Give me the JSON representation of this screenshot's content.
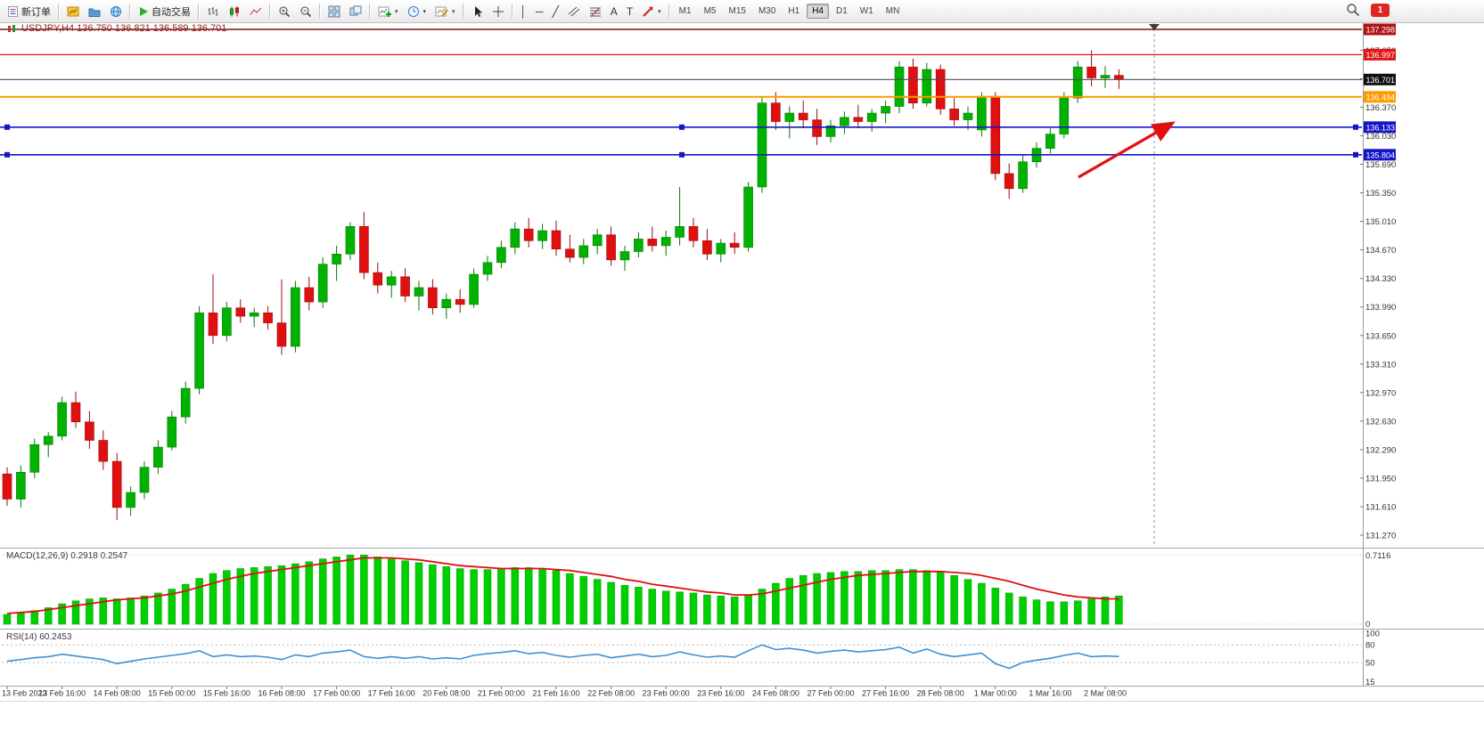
{
  "toolbar": {
    "new_order": "新订单",
    "auto_trading": "自动交易",
    "timeframes": [
      "M1",
      "M5",
      "M15",
      "M30",
      "H1",
      "H4",
      "D1",
      "W1",
      "MN"
    ],
    "active_timeframe": "H4",
    "badge": "1"
  },
  "icons": {
    "vline": "│",
    "hline": "─",
    "trendline": "╱",
    "text": "A",
    "text_label": "T",
    "caret": "▾"
  },
  "colors": {
    "bull": "#00b300",
    "bull_edge": "#067806",
    "bear": "#e01010",
    "bear_edge": "#9c0b0b",
    "macd_histogram": "#00cf00",
    "macd_histogram_edge": "#0a9c0a",
    "macd_signal": "#e01010",
    "rsi_line": "#3f8fd2"
  },
  "chart": {
    "symbol_title": "USDJPY,H4 136.750 136.821 136.589 136.701",
    "macd_label": "MACD(12,26,9) 0.2918 0.2547",
    "rsi_label": "RSI(14) 60.2453",
    "price_axis": [
      "137.050",
      "136.710",
      "136.370",
      "136.030",
      "135.690",
      "135.350",
      "135.010",
      "134.670",
      "134.330",
      "133.990",
      "133.650",
      "133.310",
      "132.970",
      "132.630",
      "132.290",
      "131.950",
      "131.610",
      "131.270"
    ],
    "macd_axis": [
      "0.7116",
      "0"
    ],
    "rsi_axis": [
      "100",
      "80",
      "50",
      "15"
    ],
    "hlines": [
      {
        "name": "resistance-line-1",
        "price": 137.298,
        "label": "137.298",
        "color": "#7b1113",
        "tag_bg": "#b01216",
        "width": 1.6
      },
      {
        "name": "resistance-line-2",
        "price": 136.997,
        "label": "136.997",
        "color": "#e21717",
        "tag_bg": "#e21717",
        "width": 1.3
      },
      {
        "name": "current-price-line",
        "price": 136.701,
        "label": "136.701",
        "color": "#4d4d4d",
        "tag_bg": "#101010",
        "width": 1.2
      },
      {
        "name": "pivot-line",
        "price": 136.494,
        "label": "136.494",
        "color": "#ff9a00",
        "tag_bg": "#ff9a00",
        "width": 2
      },
      {
        "name": "support-line-1",
        "price": 136.133,
        "label": "136.133",
        "color": "#1414c8",
        "tag_bg": "#1414c8",
        "width": 1.6,
        "handles": true
      },
      {
        "name": "support-line-2",
        "price": 135.804,
        "label": "135.804",
        "color": "#1414c8",
        "tag_bg": "#1414c8",
        "width": 1.6,
        "handles": true
      }
    ],
    "annotation_arrow": {
      "from": [
        1210,
        199
      ],
      "to": [
        1316,
        138
      ],
      "color": "#e01010"
    }
  },
  "chart_data": {
    "type": "candlestick",
    "symbol": "USDJPY",
    "timeframe": "H4",
    "ohlc_current": {
      "open": "136.750",
      "high": "136.821",
      "low": "136.589",
      "close": "136.701"
    },
    "price_range": [
      131.27,
      137.35
    ],
    "time_labels": [
      "13 Feb 2023",
      "13 Feb 16:00",
      "14 Feb 08:00",
      "15 Feb 00:00",
      "15 Feb 16:00",
      "16 Feb 08:00",
      "17 Feb 00:00",
      "17 Feb 16:00",
      "20 Feb 08:00",
      "21 Feb 00:00",
      "21 Feb 16:00",
      "22 Feb 08:00",
      "23 Feb 00:00",
      "23 Feb 16:00",
      "24 Feb 08:00",
      "27 Feb 00:00",
      "27 Feb 16:00",
      "28 Feb 08:00",
      "1 Mar 00:00",
      "1 Mar 16:00",
      "2 Mar 08:00"
    ],
    "candles": [
      [
        132.0,
        132.08,
        131.62,
        131.7
      ],
      [
        131.7,
        132.1,
        131.6,
        132.02
      ],
      [
        132.02,
        132.42,
        131.95,
        132.35
      ],
      [
        132.35,
        132.5,
        132.2,
        132.45
      ],
      [
        132.45,
        132.92,
        132.4,
        132.85
      ],
      [
        132.85,
        132.98,
        132.55,
        132.62
      ],
      [
        132.62,
        132.75,
        132.3,
        132.4
      ],
      [
        132.4,
        132.52,
        132.05,
        132.15
      ],
      [
        132.15,
        132.25,
        131.45,
        131.6
      ],
      [
        131.6,
        131.85,
        131.5,
        131.78
      ],
      [
        131.78,
        132.15,
        131.7,
        132.08
      ],
      [
        132.08,
        132.4,
        132.0,
        132.32
      ],
      [
        132.32,
        132.75,
        132.28,
        132.68
      ],
      [
        132.68,
        133.1,
        132.6,
        133.02
      ],
      [
        133.02,
        134.0,
        132.95,
        133.92
      ],
      [
        133.92,
        134.38,
        133.55,
        133.65
      ],
      [
        133.65,
        134.05,
        133.58,
        133.98
      ],
      [
        133.98,
        134.08,
        133.8,
        133.88
      ],
      [
        133.88,
        133.98,
        133.75,
        133.92
      ],
      [
        133.92,
        134.0,
        133.72,
        133.8
      ],
      [
        133.8,
        134.32,
        133.42,
        133.52
      ],
      [
        133.52,
        134.3,
        133.45,
        134.22
      ],
      [
        134.22,
        134.35,
        133.95,
        134.05
      ],
      [
        134.05,
        134.58,
        133.98,
        134.5
      ],
      [
        134.5,
        134.72,
        134.3,
        134.62
      ],
      [
        134.62,
        135.0,
        134.55,
        134.95
      ],
      [
        134.95,
        135.12,
        134.32,
        134.4
      ],
      [
        134.4,
        134.52,
        134.15,
        134.25
      ],
      [
        134.25,
        134.42,
        134.1,
        134.35
      ],
      [
        134.35,
        134.45,
        134.05,
        134.12
      ],
      [
        134.12,
        134.3,
        133.95,
        134.22
      ],
      [
        134.22,
        134.32,
        133.9,
        133.98
      ],
      [
        133.98,
        134.15,
        133.85,
        134.08
      ],
      [
        134.08,
        134.2,
        133.92,
        134.02
      ],
      [
        134.02,
        134.45,
        133.98,
        134.38
      ],
      [
        134.38,
        134.6,
        134.3,
        134.52
      ],
      [
        134.52,
        134.78,
        134.45,
        134.7
      ],
      [
        134.7,
        135.0,
        134.62,
        134.92
      ],
      [
        134.92,
        135.05,
        134.7,
        134.78
      ],
      [
        134.78,
        134.98,
        134.68,
        134.9
      ],
      [
        134.9,
        135.02,
        134.6,
        134.68
      ],
      [
        134.68,
        134.85,
        134.52,
        134.58
      ],
      [
        134.58,
        134.8,
        134.5,
        134.72
      ],
      [
        134.72,
        134.92,
        134.62,
        134.85
      ],
      [
        134.85,
        134.95,
        134.48,
        134.55
      ],
      [
        134.55,
        134.72,
        134.42,
        134.65
      ],
      [
        134.65,
        134.88,
        134.58,
        134.8
      ],
      [
        134.8,
        134.95,
        134.65,
        134.72
      ],
      [
        134.72,
        134.9,
        134.6,
        134.82
      ],
      [
        134.82,
        135.42,
        134.72,
        134.95
      ],
      [
        134.95,
        135.05,
        134.7,
        134.78
      ],
      [
        134.78,
        134.92,
        134.55,
        134.62
      ],
      [
        134.62,
        134.8,
        134.52,
        134.75
      ],
      [
        134.75,
        134.88,
        134.62,
        134.7
      ],
      [
        134.7,
        135.48,
        134.65,
        135.42
      ],
      [
        135.42,
        136.5,
        135.35,
        136.42
      ],
      [
        136.42,
        136.55,
        136.1,
        136.2
      ],
      [
        136.2,
        136.38,
        136.0,
        136.3
      ],
      [
        136.3,
        136.45,
        136.12,
        136.22
      ],
      [
        136.22,
        136.35,
        135.92,
        136.02
      ],
      [
        136.02,
        136.22,
        135.95,
        136.15
      ],
      [
        136.15,
        136.32,
        136.05,
        136.25
      ],
      [
        136.25,
        136.4,
        136.12,
        136.2
      ],
      [
        136.2,
        136.35,
        136.08,
        136.3
      ],
      [
        136.3,
        136.45,
        136.18,
        136.38
      ],
      [
        136.38,
        136.92,
        136.3,
        136.85
      ],
      [
        136.85,
        136.95,
        136.35,
        136.42
      ],
      [
        136.42,
        136.9,
        136.38,
        136.82
      ],
      [
        136.82,
        136.88,
        136.28,
        136.35
      ],
      [
        136.35,
        136.48,
        136.15,
        136.22
      ],
      [
        136.22,
        136.38,
        136.1,
        136.3
      ],
      [
        136.1,
        136.55,
        136.02,
        136.5
      ],
      [
        136.5,
        136.55,
        135.5,
        135.58
      ],
      [
        135.58,
        135.7,
        135.28,
        135.4
      ],
      [
        135.4,
        135.8,
        135.35,
        135.72
      ],
      [
        135.72,
        135.95,
        135.65,
        135.88
      ],
      [
        135.88,
        136.12,
        135.82,
        136.05
      ],
      [
        136.05,
        136.55,
        136.0,
        136.48
      ],
      [
        136.48,
        136.92,
        136.42,
        136.85
      ],
      [
        136.85,
        137.05,
        136.62,
        136.72
      ],
      [
        136.72,
        136.86,
        136.6,
        136.75
      ],
      [
        136.75,
        136.821,
        136.589,
        136.701
      ]
    ],
    "macd": {
      "params": "12,26,9",
      "value": 0.2918,
      "signal_value": 0.2547,
      "max_level": 0.7116,
      "histogram": [
        0.1,
        0.12,
        0.14,
        0.17,
        0.21,
        0.24,
        0.26,
        0.27,
        0.26,
        0.27,
        0.29,
        0.32,
        0.36,
        0.41,
        0.47,
        0.52,
        0.55,
        0.57,
        0.58,
        0.59,
        0.6,
        0.62,
        0.64,
        0.67,
        0.69,
        0.71,
        0.71,
        0.69,
        0.67,
        0.65,
        0.63,
        0.61,
        0.59,
        0.57,
        0.56,
        0.56,
        0.57,
        0.58,
        0.58,
        0.57,
        0.55,
        0.52,
        0.49,
        0.46,
        0.43,
        0.4,
        0.38,
        0.36,
        0.34,
        0.33,
        0.32,
        0.3,
        0.29,
        0.28,
        0.3,
        0.36,
        0.42,
        0.47,
        0.5,
        0.52,
        0.53,
        0.54,
        0.54,
        0.55,
        0.55,
        0.56,
        0.56,
        0.55,
        0.53,
        0.5,
        0.46,
        0.42,
        0.37,
        0.32,
        0.28,
        0.25,
        0.23,
        0.23,
        0.24,
        0.26,
        0.28,
        0.29
      ],
      "signal": [
        0.11,
        0.12,
        0.13,
        0.15,
        0.17,
        0.19,
        0.21,
        0.23,
        0.25,
        0.26,
        0.27,
        0.29,
        0.31,
        0.34,
        0.38,
        0.42,
        0.46,
        0.49,
        0.52,
        0.54,
        0.56,
        0.58,
        0.6,
        0.62,
        0.64,
        0.66,
        0.68,
        0.68,
        0.68,
        0.67,
        0.66,
        0.64,
        0.62,
        0.6,
        0.59,
        0.58,
        0.57,
        0.57,
        0.57,
        0.57,
        0.56,
        0.55,
        0.53,
        0.51,
        0.49,
        0.46,
        0.44,
        0.41,
        0.39,
        0.37,
        0.35,
        0.33,
        0.32,
        0.3,
        0.3,
        0.31,
        0.34,
        0.37,
        0.4,
        0.43,
        0.46,
        0.48,
        0.5,
        0.51,
        0.52,
        0.53,
        0.54,
        0.54,
        0.54,
        0.53,
        0.52,
        0.5,
        0.47,
        0.44,
        0.4,
        0.36,
        0.33,
        0.3,
        0.28,
        0.27,
        0.26,
        0.26
      ]
    },
    "rsi": {
      "period": 14,
      "value": 60.2453,
      "levels": [
        80,
        50
      ],
      "values": [
        52,
        55,
        58,
        60,
        64,
        61,
        58,
        55,
        48,
        52,
        56,
        59,
        62,
        65,
        70,
        60,
        63,
        60,
        61,
        59,
        55,
        63,
        60,
        66,
        68,
        71,
        60,
        57,
        60,
        57,
        60,
        56,
        58,
        56,
        62,
        65,
        67,
        70,
        65,
        67,
        62,
        59,
        62,
        64,
        58,
        61,
        64,
        60,
        62,
        68,
        63,
        59,
        61,
        59,
        70,
        80,
        72,
        74,
        71,
        66,
        69,
        71,
        68,
        70,
        72,
        76,
        66,
        73,
        64,
        60,
        63,
        66,
        48,
        40,
        50,
        54,
        57,
        62,
        66,
        60,
        61,
        60.25
      ]
    }
  }
}
